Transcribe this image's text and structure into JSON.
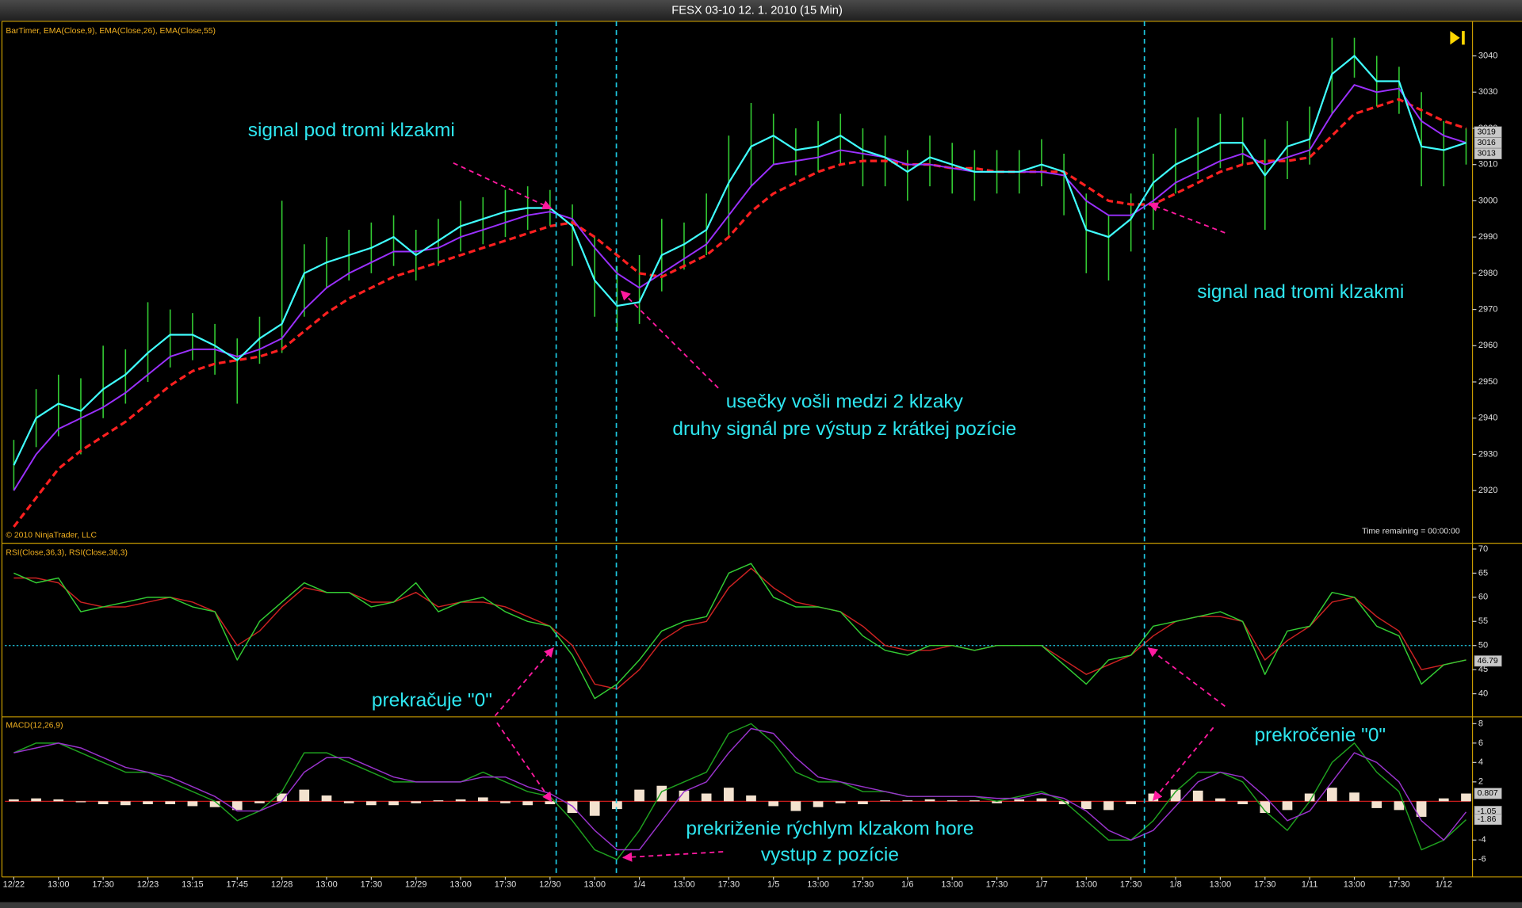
{
  "window": {
    "title": "FESX 03-10  12. 1. 2010 (15 Min)"
  },
  "annotations": [
    "signal pod tromi klzakmi",
    "usečky vošli medzi 2 klzaky",
    "druhy signál pre výstup z krátkej pozície",
    "signal nad tromi klzakmi",
    "prekračuje \"0\"",
    "prekročenie \"0\"",
    "prekriženie rýchlym klzakom hore",
    "vystup z pozície"
  ],
  "chart_data": [
    {
      "type": "line",
      "indicator": "BarTimer, EMA(Close,9), EMA(Close,26), EMA(Close,55)",
      "copyright": "© 2010 NinjaTrader, LLC",
      "status": "Time remaining = 00:00:00",
      "xlim": [
        -0.2,
        32.6
      ],
      "ylim": [
        2906,
        3049
      ],
      "yticks": [
        2920,
        2930,
        2940,
        2950,
        2960,
        2970,
        2980,
        2990,
        3000,
        3010,
        3020,
        3030,
        3040
      ],
      "x": [
        0,
        0.5,
        1,
        1.5,
        2,
        2.5,
        3,
        3.5,
        4,
        4.5,
        5,
        5.5,
        6,
        6.5,
        7,
        7.5,
        8,
        8.5,
        9,
        9.5,
        10,
        10.5,
        11,
        11.5,
        12,
        12.5,
        13,
        13.5,
        14,
        14.5,
        15,
        15.5,
        16,
        16.5,
        17,
        17.5,
        18,
        18.5,
        19,
        19.5,
        20,
        20.5,
        21,
        21.5,
        22,
        22.5,
        23,
        23.5,
        24,
        24.5,
        25,
        25.5,
        26,
        26.5,
        27,
        27.5,
        28,
        28.5,
        29,
        29.5,
        30,
        30.5,
        31,
        31.5,
        32,
        32.5
      ],
      "bars": {
        "color": "#33cc33",
        "high": [
          2934,
          2948,
          2952,
          2951,
          2960,
          2959,
          2972,
          2970,
          2969,
          2966,
          2962,
          2968,
          3000,
          2988,
          2990,
          2992,
          2994,
          2996,
          2992,
          2995,
          3000,
          3001,
          3003,
          3004,
          3003,
          2999,
          2990,
          2982,
          2985,
          2995,
          2994,
          3002,
          3018,
          3027,
          3024,
          3020,
          3022,
          3024,
          3020,
          3018,
          3014,
          3018,
          3016,
          3014,
          3014,
          3014,
          3017,
          3013,
          3002,
          2996,
          3002,
          3013,
          3020,
          3023,
          3024,
          3023,
          3017,
          3022,
          3026,
          3045,
          3045,
          3040,
          3037,
          3030,
          3022,
          3020
        ],
        "low": [
          2920,
          2932,
          2935,
          2930,
          2940,
          2944,
          2950,
          2954,
          2956,
          2952,
          2944,
          2955,
          2958,
          2968,
          2976,
          2978,
          2980,
          2982,
          2978,
          2982,
          2986,
          2988,
          2990,
          2992,
          2993,
          2982,
          2968,
          2964,
          2966,
          2975,
          2981,
          2985,
          2990,
          3004,
          3010,
          3007,
          3008,
          3010,
          3004,
          3004,
          3000,
          3004,
          3002,
          3000,
          3002,
          3002,
          3004,
          2996,
          2980,
          2978,
          2986,
          2992,
          3002,
          3006,
          3009,
          3010,
          2992,
          3006,
          3010,
          3024,
          3034,
          3026,
          3024,
          3004,
          3004,
          3010
        ]
      },
      "series": [
        {
          "color": "#ff2020",
          "dashed": true,
          "width": 2.6,
          "values": [
            2910,
            2918,
            2926,
            2931,
            2935,
            2939,
            2944,
            2949,
            2953,
            2955,
            2956,
            2957,
            2959,
            2964,
            2969,
            2973,
            2976,
            2979,
            2981,
            2983,
            2985,
            2987,
            2989,
            2991,
            2993,
            2994,
            2990,
            2985,
            2980,
            2979,
            2982,
            2985,
            2990,
            2997,
            3002,
            3005,
            3008,
            3010,
            3011,
            3011,
            3010,
            3010,
            3009,
            3009,
            3008,
            3008,
            3008,
            3008,
            3004,
            3000,
            2999,
            2999,
            3002,
            3005,
            3008,
            3010,
            3011,
            3011,
            3012,
            3018,
            3024,
            3026,
            3028,
            3025,
            3022,
            3020
          ]
        },
        {
          "color": "#9b30ff",
          "dashed": false,
          "width": 1.6,
          "values": [
            2920,
            2930,
            2937,
            2940,
            2943,
            2947,
            2952,
            2957,
            2959,
            2959,
            2957,
            2959,
            2962,
            2970,
            2976,
            2980,
            2983,
            2986,
            2986,
            2987,
            2990,
            2992,
            2994,
            2996,
            2997,
            2995,
            2987,
            2980,
            2976,
            2980,
            2984,
            2988,
            2996,
            3004,
            3010,
            3011,
            3012,
            3014,
            3013,
            3012,
            3010,
            3010,
            3009,
            3008,
            3008,
            3008,
            3008,
            3007,
            3000,
            2996,
            2996,
            3000,
            3005,
            3008,
            3011,
            3013,
            3010,
            3012,
            3014,
            3024,
            3032,
            3030,
            3031,
            3022,
            3018,
            3016
          ]
        },
        {
          "color": "#40ffff",
          "dashed": false,
          "width": 1.8,
          "values": [
            2927,
            2940,
            2944,
            2942,
            2948,
            2952,
            2958,
            2963,
            2963,
            2960,
            2956,
            2962,
            2966,
            2980,
            2983,
            2985,
            2987,
            2990,
            2985,
            2989,
            2993,
            2995,
            2997,
            2998,
            2998,
            2993,
            2978,
            2971,
            2972,
            2985,
            2988,
            2992,
            3005,
            3015,
            3018,
            3014,
            3015,
            3018,
            3014,
            3012,
            3008,
            3012,
            3010,
            3008,
            3008,
            3008,
            3010,
            3008,
            2992,
            2990,
            2995,
            3005,
            3010,
            3013,
            3016,
            3016,
            3007,
            3015,
            3017,
            3035,
            3040,
            3033,
            3033,
            3015,
            3014,
            3016
          ]
        }
      ],
      "last_values": [
        3019,
        3016,
        3013
      ]
    },
    {
      "type": "line",
      "indicator": "RSI(Close,36,3), RSI(Close,36,3)",
      "xlim": [
        -0.2,
        32.6
      ],
      "ylim": [
        35.4,
        70.8
      ],
      "yticks": [
        40,
        45,
        50,
        55,
        60,
        65,
        70
      ],
      "hline": 50,
      "hline_color": "#1ec8e0",
      "x": [
        0,
        0.5,
        1,
        1.5,
        2,
        2.5,
        3,
        3.5,
        4,
        4.5,
        5,
        5.5,
        6,
        6.5,
        7,
        7.5,
        8,
        8.5,
        9,
        9.5,
        10,
        10.5,
        11,
        11.5,
        12,
        12.5,
        13,
        13.5,
        14,
        14.5,
        15,
        15.5,
        16,
        16.5,
        17,
        17.5,
        18,
        18.5,
        19,
        19.5,
        20,
        20.5,
        21,
        21.5,
        22,
        22.5,
        23,
        23.5,
        24,
        24.5,
        25,
        25.5,
        26,
        26.5,
        27,
        27.5,
        28,
        28.5,
        29,
        29.5,
        30,
        30.5,
        31,
        31.5,
        32,
        32.5
      ],
      "series": [
        {
          "color": "#cc2222",
          "dashed": false,
          "width": 1.2,
          "values": [
            64,
            64,
            63,
            59,
            58,
            58,
            59,
            60,
            59,
            57,
            50,
            53,
            58,
            62,
            61,
            61,
            59,
            59,
            61,
            58,
            59,
            59,
            58,
            56,
            54,
            50,
            42,
            41,
            45,
            51,
            54,
            55,
            62,
            66,
            62,
            59,
            58,
            57,
            54,
            50,
            49,
            49,
            50,
            49,
            50,
            50,
            50,
            47,
            44,
            46,
            48,
            52,
            55,
            56,
            56,
            55,
            47,
            51,
            54,
            59,
            60,
            56,
            53,
            45,
            46,
            47
          ]
        },
        {
          "color": "#33cc33",
          "dashed": false,
          "width": 1.2,
          "values": [
            65,
            63,
            64,
            57,
            58,
            59,
            60,
            60,
            58,
            57,
            47,
            55,
            59,
            63,
            61,
            61,
            58,
            59,
            63,
            57,
            59,
            60,
            57,
            55,
            54,
            48,
            39,
            42,
            47,
            53,
            55,
            56,
            65,
            67,
            60,
            58,
            58,
            57,
            52,
            49,
            48,
            50,
            50,
            49,
            50,
            50,
            50,
            46,
            42,
            47,
            48,
            54,
            55,
            56,
            57,
            55,
            44,
            53,
            54,
            61,
            60,
            54,
            52,
            42,
            46,
            47
          ]
        }
      ],
      "last_values": [
        46.79
      ]
    },
    {
      "type": "line",
      "indicator": "MACD(12,26,9)",
      "xlim": [
        -0.2,
        32.6
      ],
      "ylim": [
        -7.6,
        8.6
      ],
      "yticks": [
        -6,
        -4,
        2,
        4,
        6,
        8
      ],
      "hline": 0,
      "hline_color": "#e02020",
      "xticks": [
        {
          "value": 0,
          "label": "12/22"
        },
        {
          "value": 1,
          "label": "13:00"
        },
        {
          "value": 2,
          "label": "17:30"
        },
        {
          "value": 3,
          "label": "12/23"
        },
        {
          "value": 4,
          "label": "13:15"
        },
        {
          "value": 5,
          "label": "17:45"
        },
        {
          "value": 6,
          "label": "12/28"
        },
        {
          "value": 7,
          "label": "13:00"
        },
        {
          "value": 8,
          "label": "17:30"
        },
        {
          "value": 9,
          "label": "12/29"
        },
        {
          "value": 10,
          "label": "13:00"
        },
        {
          "value": 11,
          "label": "17:30"
        },
        {
          "value": 12,
          "label": "12/30"
        },
        {
          "value": 13,
          "label": "13:00"
        },
        {
          "value": 14,
          "label": "1/4"
        },
        {
          "value": 15,
          "label": "13:00"
        },
        {
          "value": 16,
          "label": "17:30"
        },
        {
          "value": 17,
          "label": "1/5"
        },
        {
          "value": 18,
          "label": "13:00"
        },
        {
          "value": 19,
          "label": "17:30"
        },
        {
          "value": 20,
          "label": "1/6"
        },
        {
          "value": 21,
          "label": "13:00"
        },
        {
          "value": 22,
          "label": "17:30"
        },
        {
          "value": 23,
          "label": "1/7"
        },
        {
          "value": 24,
          "label": "13:00"
        },
        {
          "value": 25,
          "label": "17:30"
        },
        {
          "value": 26,
          "label": "1/8"
        },
        {
          "value": 27,
          "label": "13:00"
        },
        {
          "value": 28,
          "label": "17:30"
        },
        {
          "value": 29,
          "label": "1/11"
        },
        {
          "value": 30,
          "label": "13:00"
        },
        {
          "value": 31,
          "label": "17:30"
        },
        {
          "value": 32,
          "label": "1/12"
        }
      ],
      "x": [
        0,
        0.5,
        1,
        1.5,
        2,
        2.5,
        3,
        3.5,
        4,
        4.5,
        5,
        5.5,
        6,
        6.5,
        7,
        7.5,
        8,
        8.5,
        9,
        9.5,
        10,
        10.5,
        11,
        11.5,
        12,
        12.5,
        13,
        13.5,
        14,
        14.5,
        15,
        15.5,
        16,
        16.5,
        17,
        17.5,
        18,
        18.5,
        19,
        19.5,
        20,
        20.5,
        21,
        21.5,
        22,
        22.5,
        23,
        23.5,
        24,
        24.5,
        25,
        25.5,
        26,
        26.5,
        27,
        27.5,
        28,
        28.5,
        29,
        29.5,
        30,
        30.5,
        31,
        31.5,
        32,
        32.5
      ],
      "histogram": {
        "color": "#f3e2cf",
        "values": [
          0.2,
          0.3,
          0.2,
          -0.1,
          -0.3,
          -0.4,
          -0.3,
          -0.3,
          -0.5,
          -0.6,
          -0.9,
          -0.2,
          0.8,
          1.2,
          0.6,
          -0.2,
          -0.4,
          -0.4,
          -0.2,
          0.1,
          0.2,
          0.4,
          -0.2,
          -0.4,
          -0.3,
          -1.2,
          -1.5,
          -0.8,
          1.2,
          1.6,
          1.1,
          0.8,
          1.4,
          0.6,
          -0.5,
          -1.0,
          -0.6,
          -0.2,
          -0.3,
          0.1,
          0.1,
          0.2,
          0.1,
          0.1,
          -0.2,
          0.2,
          0.3,
          -0.3,
          -0.8,
          -0.9,
          -0.3,
          0.8,
          1.2,
          1.1,
          0.3,
          -0.3,
          -1.2,
          -0.9,
          0.8,
          1.4,
          0.9,
          -0.7,
          -0.9,
          -1.6,
          0.3,
          0.8
        ]
      },
      "series": [
        {
          "color": "#1fa01f",
          "dashed": false,
          "width": 1.2,
          "values": [
            5,
            6,
            6,
            5,
            4,
            3,
            3,
            2,
            1,
            0,
            -2,
            -1,
            1,
            5,
            5,
            4,
            3,
            2,
            2,
            2,
            2,
            3,
            2,
            1,
            0.5,
            -2,
            -5,
            -6,
            -3,
            1,
            2,
            3,
            7,
            8,
            6,
            3,
            2,
            2,
            1,
            1,
            0.5,
            0.5,
            0.5,
            0.5,
            0,
            0.5,
            1,
            0,
            -2,
            -4,
            -4,
            -2,
            1,
            3,
            3,
            2,
            -1,
            -3,
            0,
            4,
            6,
            3,
            1,
            -5,
            -4,
            -1.9
          ]
        },
        {
          "color": "#9933cc",
          "dashed": false,
          "width": 1.2,
          "values": [
            5,
            5.5,
            6,
            5.5,
            4.5,
            3.5,
            3,
            2.5,
            1.5,
            0.5,
            -1,
            -1,
            0,
            3,
            4.5,
            4.5,
            3.5,
            2.5,
            2,
            2,
            2,
            2.5,
            2.5,
            1.5,
            0.8,
            -0.5,
            -3,
            -5,
            -5,
            -2,
            1,
            2,
            5,
            7.5,
            7,
            4.5,
            2.5,
            2,
            1.5,
            1,
            0.5,
            0.5,
            0.5,
            0.5,
            0.3,
            0.3,
            0.8,
            0.3,
            -1,
            -3,
            -4,
            -3,
            -0.5,
            2,
            3,
            2.5,
            0.5,
            -2,
            -1,
            2,
            5,
            4,
            2,
            -2,
            -4,
            -1.1
          ]
        }
      ],
      "last_values": [
        0.807,
        -1.05,
        -1.86
      ]
    }
  ]
}
